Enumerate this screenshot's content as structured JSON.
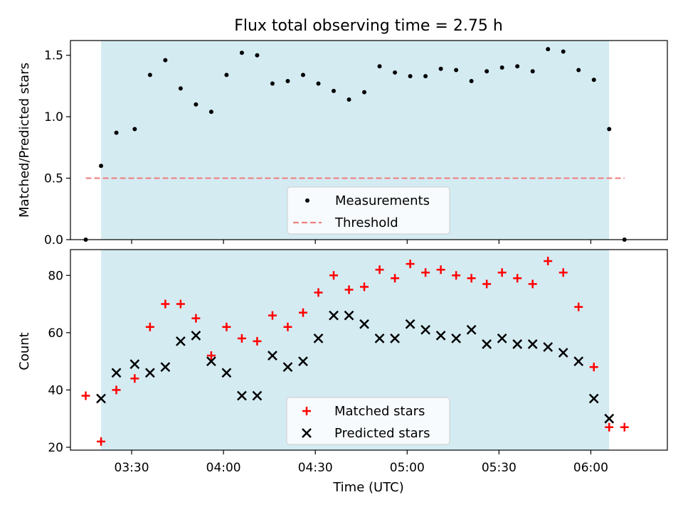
{
  "title": "Flux total observing time = 2.75 h",
  "chart_data": [
    {
      "type": "scatter",
      "ylabel": "Matched/Predicted stars",
      "xlabel": "",
      "x_unit": "time (UTC)",
      "xlim": [
        "03:10",
        "06:25"
      ],
      "ylim": [
        0,
        1.62
      ],
      "yticks": [
        0.0,
        0.5,
        1.0,
        1.5
      ],
      "ytick_labels": [
        "0.0",
        "0.5",
        "1.0",
        "1.5"
      ],
      "x_tick_labels_shown": false,
      "shaded_interval": [
        "03:20",
        "06:06"
      ],
      "shade_color": "#add8e6",
      "legend_position": "lower center",
      "series": [
        {
          "name": "Measurements",
          "marker": "dot",
          "color": "#000000",
          "points": [
            [
              "03:15",
              0.0
            ],
            [
              "03:20",
              0.6
            ],
            [
              "03:25",
              0.87
            ],
            [
              "03:31",
              0.9
            ],
            [
              "03:36",
              1.34
            ],
            [
              "03:41",
              1.46
            ],
            [
              "03:46",
              1.23
            ],
            [
              "03:51",
              1.1
            ],
            [
              "03:56",
              1.04
            ],
            [
              "04:01",
              1.34
            ],
            [
              "04:06",
              1.52
            ],
            [
              "04:11",
              1.5
            ],
            [
              "04:16",
              1.27
            ],
            [
              "04:21",
              1.29
            ],
            [
              "04:26",
              1.34
            ],
            [
              "04:31",
              1.27
            ],
            [
              "04:36",
              1.21
            ],
            [
              "04:41",
              1.14
            ],
            [
              "04:46",
              1.2
            ],
            [
              "04:51",
              1.41
            ],
            [
              "04:56",
              1.36
            ],
            [
              "05:01",
              1.33
            ],
            [
              "05:06",
              1.33
            ],
            [
              "05:11",
              1.39
            ],
            [
              "05:16",
              1.38
            ],
            [
              "05:21",
              1.29
            ],
            [
              "05:26",
              1.37
            ],
            [
              "05:31",
              1.4
            ],
            [
              "05:36",
              1.41
            ],
            [
              "05:41",
              1.37
            ],
            [
              "05:46",
              1.55
            ],
            [
              "05:51",
              1.53
            ],
            [
              "05:56",
              1.38
            ],
            [
              "06:01",
              1.3
            ],
            [
              "06:06",
              0.9
            ],
            [
              "06:11",
              0.0
            ]
          ]
        },
        {
          "name": "Threshold",
          "type": "line",
          "style": "dashed",
          "color": "#f08080",
          "x_range": [
            "03:15",
            "06:11"
          ],
          "value": 0.5
        }
      ]
    },
    {
      "type": "scatter",
      "ylabel": "Count",
      "xlabel": "Time (UTC)",
      "xlim": [
        "03:10",
        "06:25"
      ],
      "ylim": [
        19,
        89
      ],
      "yticks": [
        20,
        40,
        60,
        80
      ],
      "ytick_labels": [
        "20",
        "40",
        "60",
        "80"
      ],
      "xticks": [
        "03:30",
        "04:00",
        "04:30",
        "05:00",
        "05:30",
        "06:00"
      ],
      "shaded_interval": [
        "03:20",
        "06:06"
      ],
      "shade_color": "#add8e6",
      "legend_position": "lower center",
      "series": [
        {
          "name": "Matched stars",
          "marker": "plus",
          "color": "#ff0000",
          "points": [
            [
              "03:15",
              38
            ],
            [
              "03:20",
              22
            ],
            [
              "03:25",
              40
            ],
            [
              "03:31",
              44
            ],
            [
              "03:36",
              62
            ],
            [
              "03:41",
              70
            ],
            [
              "03:46",
              70
            ],
            [
              "03:51",
              65
            ],
            [
              "03:56",
              52
            ],
            [
              "04:01",
              62
            ],
            [
              "04:06",
              58
            ],
            [
              "04:11",
              57
            ],
            [
              "04:16",
              66
            ],
            [
              "04:21",
              62
            ],
            [
              "04:26",
              67
            ],
            [
              "04:31",
              74
            ],
            [
              "04:36",
              80
            ],
            [
              "04:41",
              75
            ],
            [
              "04:46",
              76
            ],
            [
              "04:51",
              82
            ],
            [
              "04:56",
              79
            ],
            [
              "05:01",
              84
            ],
            [
              "05:06",
              81
            ],
            [
              "05:11",
              82
            ],
            [
              "05:16",
              80
            ],
            [
              "05:21",
              79
            ],
            [
              "05:26",
              77
            ],
            [
              "05:31",
              81
            ],
            [
              "05:36",
              79
            ],
            [
              "05:41",
              77
            ],
            [
              "05:46",
              85
            ],
            [
              "05:51",
              81
            ],
            [
              "05:56",
              69
            ],
            [
              "06:01",
              48
            ],
            [
              "06:06",
              27
            ],
            [
              "06:11",
              27
            ]
          ]
        },
        {
          "name": "Predicted stars",
          "marker": "x",
          "color": "#000000",
          "points": [
            [
              "03:20",
              37
            ],
            [
              "03:25",
              46
            ],
            [
              "03:31",
              49
            ],
            [
              "03:36",
              46
            ],
            [
              "03:41",
              48
            ],
            [
              "03:46",
              57
            ],
            [
              "03:51",
              59
            ],
            [
              "03:56",
              50
            ],
            [
              "04:01",
              46
            ],
            [
              "04:06",
              38
            ],
            [
              "04:11",
              38
            ],
            [
              "04:16",
              52
            ],
            [
              "04:21",
              48
            ],
            [
              "04:26",
              50
            ],
            [
              "04:31",
              58
            ],
            [
              "04:36",
              66
            ],
            [
              "04:41",
              66
            ],
            [
              "04:46",
              63
            ],
            [
              "04:51",
              58
            ],
            [
              "04:56",
              58
            ],
            [
              "05:01",
              63
            ],
            [
              "05:06",
              61
            ],
            [
              "05:11",
              59
            ],
            [
              "05:16",
              58
            ],
            [
              "05:21",
              61
            ],
            [
              "05:26",
              56
            ],
            [
              "05:31",
              58
            ],
            [
              "05:36",
              56
            ],
            [
              "05:41",
              56
            ],
            [
              "05:46",
              55
            ],
            [
              "05:51",
              53
            ],
            [
              "05:56",
              50
            ],
            [
              "06:01",
              37
            ],
            [
              "06:06",
              30
            ]
          ]
        }
      ]
    }
  ]
}
